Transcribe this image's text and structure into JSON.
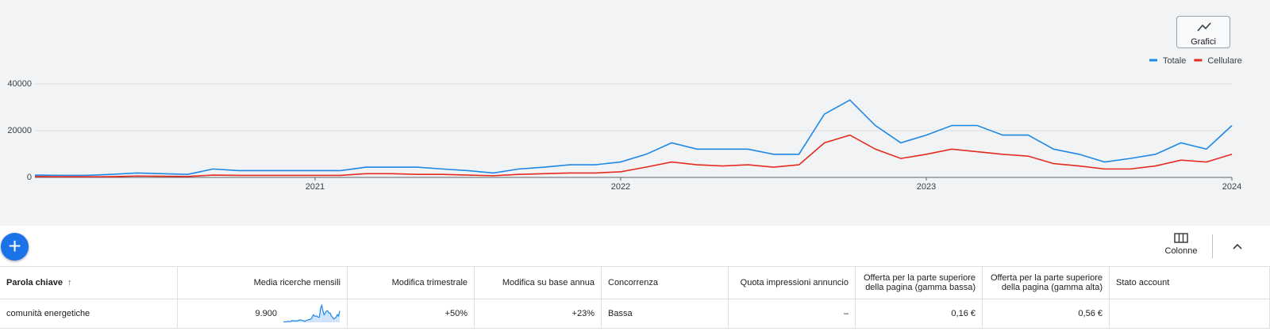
{
  "buttons": {
    "charts": "Grafici",
    "columns": "Colonne"
  },
  "chart_data": {
    "type": "line",
    "categories": [
      null,
      null,
      null,
      null,
      null,
      null,
      null,
      null,
      null,
      null,
      null,
      "2021",
      null,
      null,
      null,
      null,
      null,
      null,
      null,
      null,
      null,
      null,
      null,
      "2022",
      null,
      null,
      null,
      null,
      null,
      null,
      null,
      null,
      null,
      null,
      null,
      "2023",
      null,
      null,
      null,
      null,
      null,
      null,
      null,
      null,
      null,
      null,
      null,
      "2024"
    ],
    "series": [
      {
        "name": "Totale",
        "color": "#1e88e5",
        "values": [
          1000,
          880,
          880,
          1300,
          1900,
          1600,
          1300,
          3600,
          2900,
          2900,
          2900,
          2900,
          2900,
          4400,
          4400,
          4400,
          3600,
          2900,
          1900,
          3600,
          4400,
          5400,
          5400,
          6600,
          9900,
          14800,
          12100,
          12100,
          12100,
          9900,
          9900,
          27100,
          33100,
          22200,
          14800,
          18100,
          22200,
          22200,
          18100,
          18100,
          12100,
          9900,
          6600,
          8100,
          9900,
          14800,
          12100,
          22200
        ]
      },
      {
        "name": "Cellulare",
        "color": "#e52b1e",
        "values": [
          390,
          260,
          260,
          320,
          590,
          480,
          390,
          1000,
          880,
          880,
          880,
          880,
          880,
          1600,
          1600,
          1300,
          1300,
          1000,
          720,
          1300,
          1600,
          1900,
          1900,
          2400,
          4400,
          6600,
          5400,
          4900,
          5400,
          4400,
          5400,
          14800,
          18100,
          12100,
          8100,
          9900,
          12100,
          11000,
          9900,
          9100,
          5900,
          4900,
          3600,
          3600,
          4900,
          7400,
          6600,
          9900
        ]
      }
    ],
    "ylim": [
      0,
      40000
    ],
    "yticks": [
      0,
      20000,
      40000
    ],
    "grid": true,
    "legend": "top-right"
  },
  "table": {
    "headers": [
      "Parola chiave",
      "Media ricerche mensili",
      "Modifica trimestrale",
      "Modifica su base annua",
      "Concorrenza",
      "Quota impressioni annuncio",
      "Offerta per la parte superiore della pagina (gamma bassa)",
      "Offerta per la parte superiore della pagina (gamma alta)",
      "Stato account"
    ],
    "rows": [
      [
        "comunità energetiche",
        "9.900",
        "+50%",
        "+23%",
        "Bassa",
        "–",
        "0,16 €",
        "0,56 €"
      ]
    ]
  }
}
